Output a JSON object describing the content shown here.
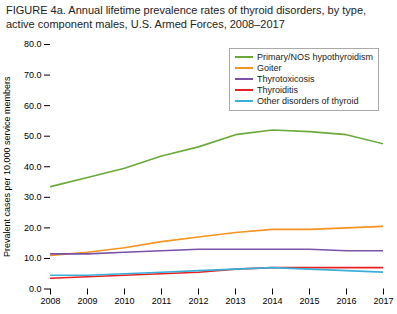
{
  "chart_data": {
    "type": "line",
    "title": "FIGURE 4a. Annual lifetime prevalence rates of thyroid disorders, by type, active component males, U.S. Armed Forces, 2008–2017",
    "x": [
      2008,
      2009,
      2010,
      2011,
      2012,
      2013,
      2014,
      2015,
      2016,
      2017
    ],
    "series": [
      {
        "name": "Primary/NOS hypothyroidism",
        "color": "#6aaa3a",
        "values": [
          33.5,
          36.5,
          39.5,
          43.5,
          46.5,
          50.5,
          52.0,
          51.5,
          50.5,
          47.5
        ]
      },
      {
        "name": "Goiter",
        "color": "#f5941e",
        "values": [
          11.0,
          12.0,
          13.5,
          15.5,
          17.0,
          18.5,
          19.5,
          19.5,
          20.0,
          20.5
        ]
      },
      {
        "name": "Thyrotoxicosis",
        "color": "#7b52a6",
        "values": [
          11.5,
          11.5,
          12.0,
          12.5,
          13.0,
          13.0,
          13.0,
          13.0,
          12.5,
          12.5
        ]
      },
      {
        "name": "Thyroiditis",
        "color": "#e82020",
        "values": [
          3.5,
          4.0,
          4.5,
          5.0,
          5.5,
          6.5,
          7.0,
          7.0,
          7.0,
          7.0
        ]
      },
      {
        "name": "Other disorders of thyroid",
        "color": "#3ab0d8",
        "values": [
          4.5,
          4.5,
          5.0,
          5.5,
          6.0,
          6.5,
          7.0,
          6.5,
          6.0,
          5.5
        ]
      }
    ],
    "ylabel": "Prevalent cases per 10,000 service members",
    "xlim": [
      2008,
      2017
    ],
    "xticks": [
      2008,
      2009,
      2010,
      2011,
      2012,
      2013,
      2014,
      2015,
      2016,
      2017
    ],
    "ylim": [
      0,
      80.0
    ],
    "yticks": [
      {
        "value": 0.0,
        "label": "0.0"
      },
      {
        "value": 10.0,
        "label": "10.0"
      },
      {
        "value": 20.0,
        "label": "20.0"
      },
      {
        "value": 30.0,
        "label": "30.0"
      },
      {
        "value": 40.0,
        "label": "40.0"
      },
      {
        "value": 50.0,
        "label": "50.0"
      },
      {
        "value": 60.0,
        "label": "60.0"
      },
      {
        "value": 70.0,
        "label": "70.0"
      },
      {
        "value": 80.0,
        "label": "80.0"
      }
    ],
    "legend": "upper right",
    "grid": false
  }
}
